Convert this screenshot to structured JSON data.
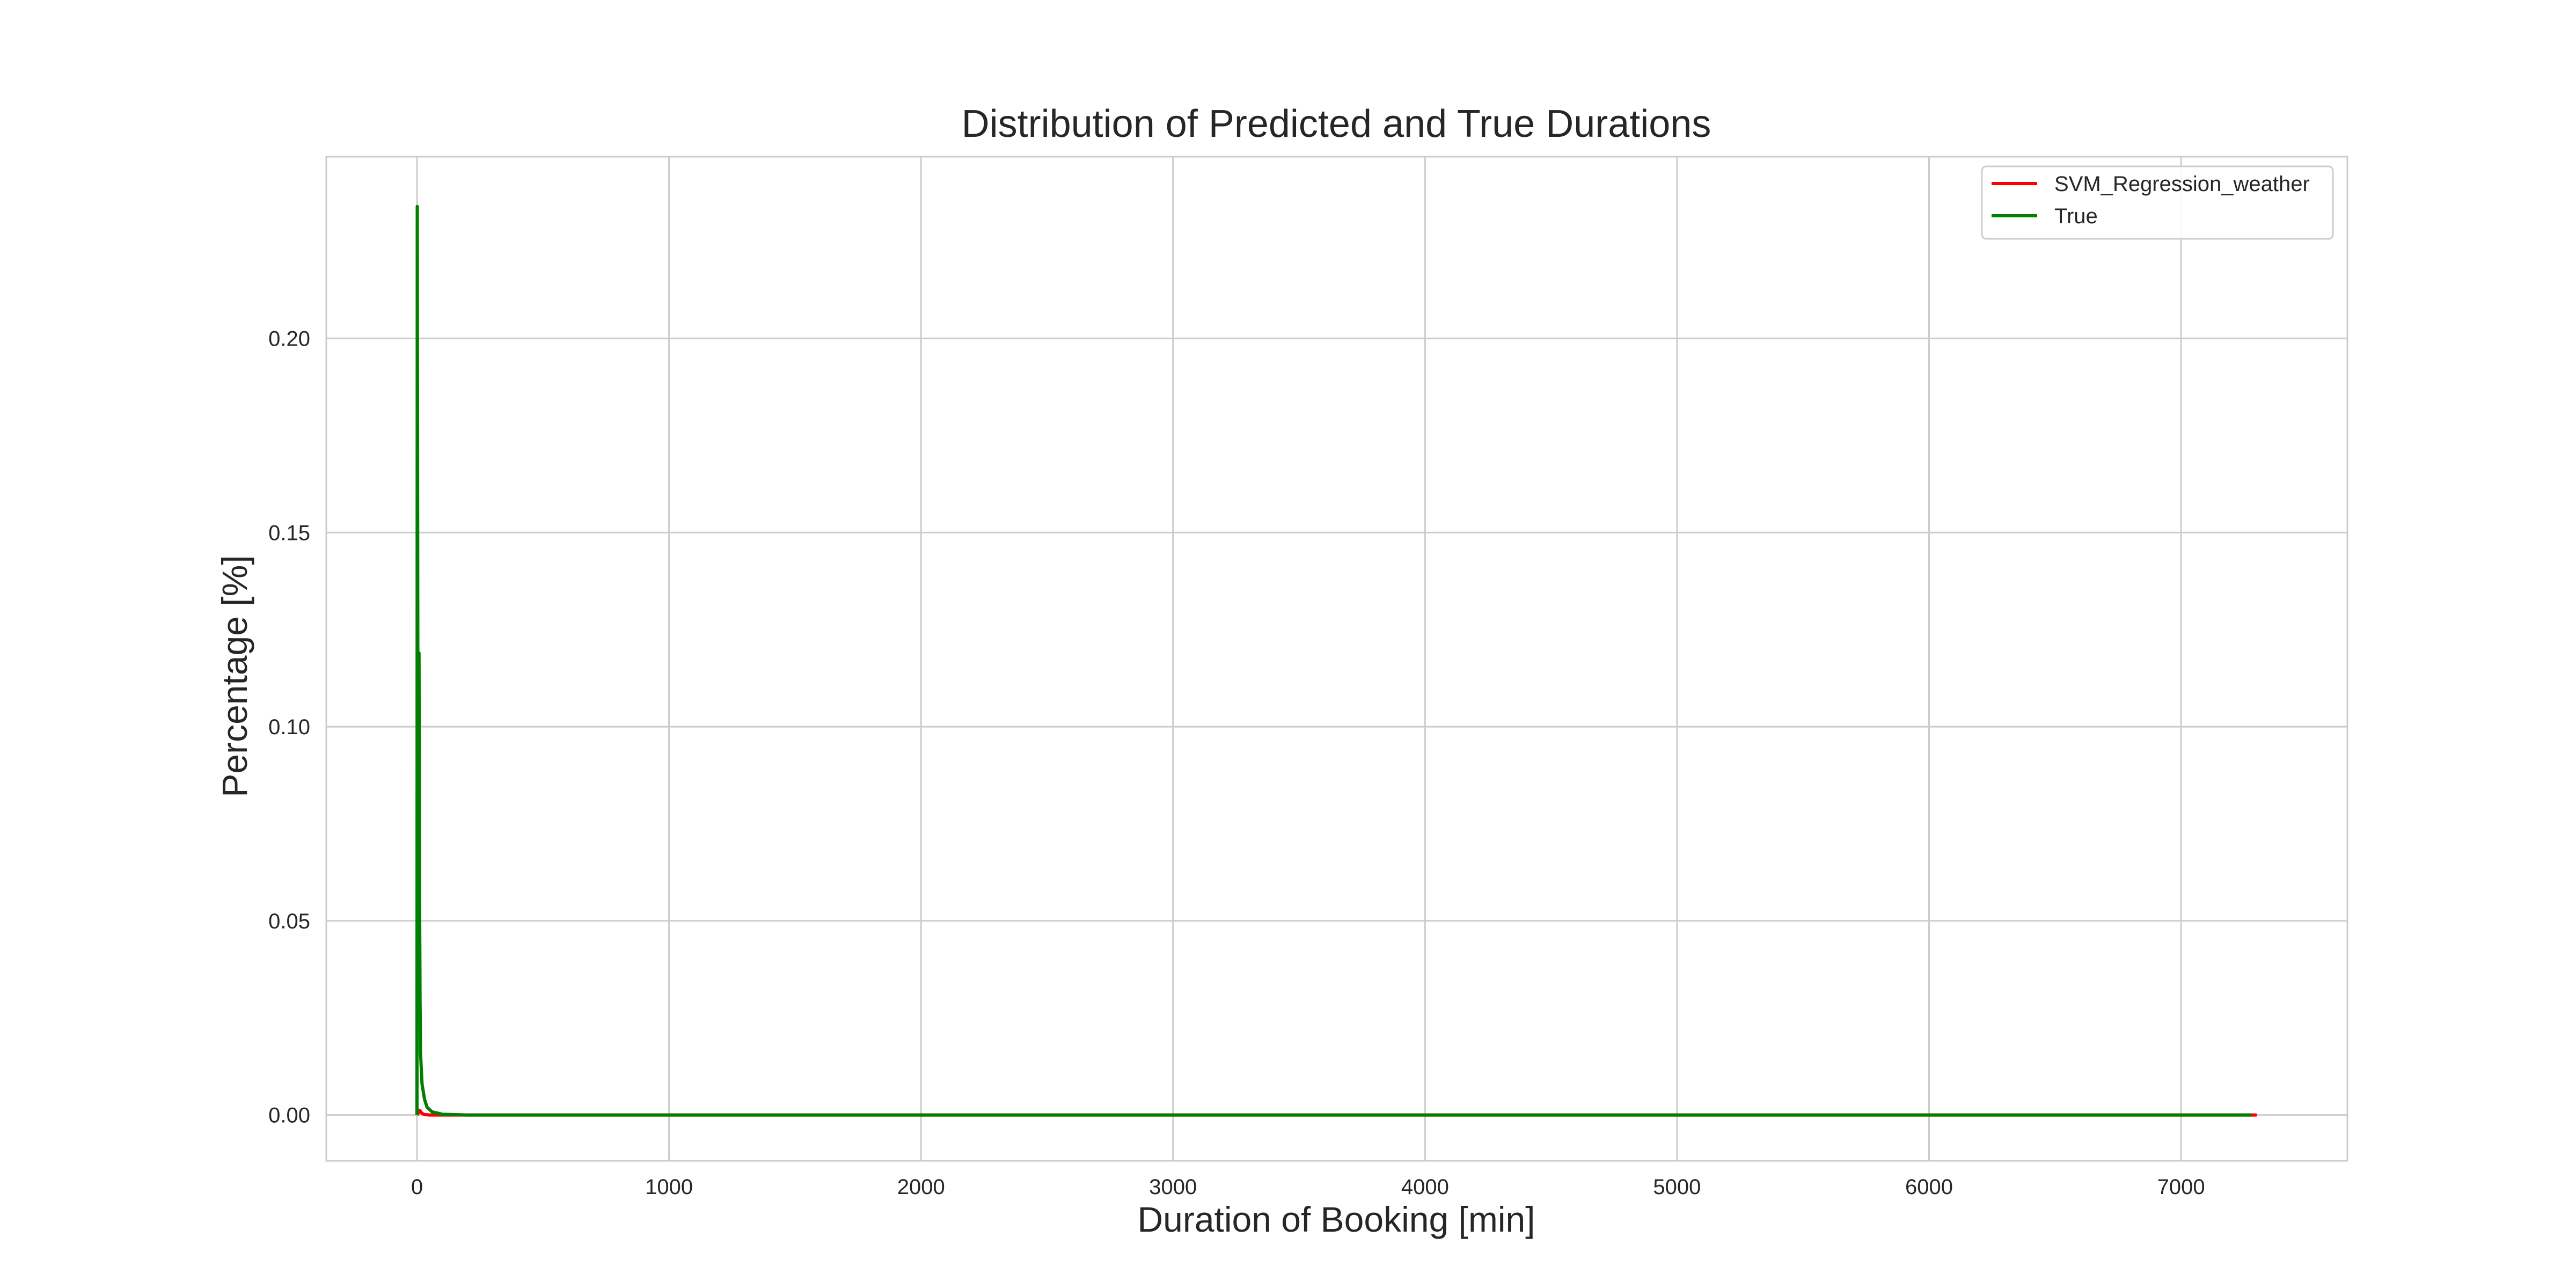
{
  "chart_data": {
    "type": "line",
    "title": "Distribution of Predicted and True Durations",
    "xlabel": "Duration of Booking [min]",
    "ylabel": "Percentage [%]",
    "xlim": [
      -360,
      7660
    ],
    "ylim": [
      -0.0118,
      0.2468
    ],
    "xticks": [
      0,
      1000,
      2000,
      3000,
      4000,
      5000,
      6000,
      7000
    ],
    "yticks": [
      0.0,
      0.05,
      0.1,
      0.15,
      0.2
    ],
    "ytick_labels": [
      "0.00",
      "0.05",
      "0.10",
      "0.15",
      "0.20"
    ],
    "grid": true,
    "legend_position": "top-right",
    "series": [
      {
        "name": "SVM_Regression_weather",
        "color": "#ff0000",
        "x": [
          0,
          5,
          10,
          15,
          20,
          30,
          50,
          7300
        ],
        "y": [
          0,
          0.0005,
          0.0012,
          0.0008,
          0.0004,
          0.0001,
          0,
          0
        ]
      },
      {
        "name": "True",
        "color": "#008000",
        "x": [
          0,
          1,
          2,
          4,
          6,
          8,
          10,
          12,
          14,
          20,
          30,
          40,
          60,
          100,
          200,
          7280
        ],
        "y": [
          0,
          0.234,
          0.18,
          0.08,
          0.05,
          0.119,
          0.06,
          0.03,
          0.016,
          0.008,
          0.004,
          0.002,
          0.0008,
          0.0002,
          0,
          0
        ]
      }
    ]
  }
}
